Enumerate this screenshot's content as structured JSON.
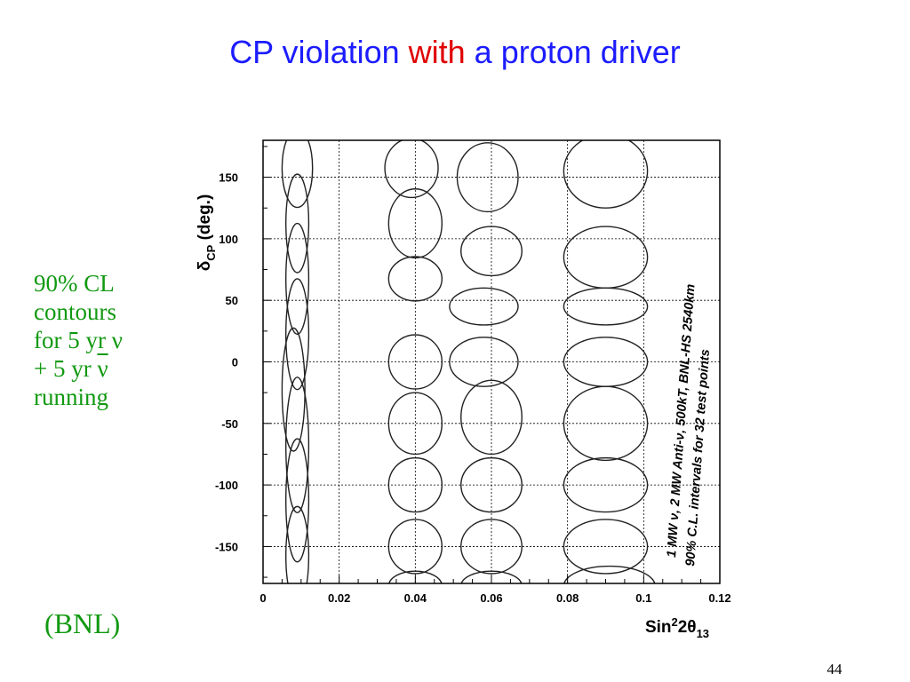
{
  "slide": {
    "title_part1": "CP violation ",
    "title_highlight": "with",
    "title_part2": " a proton driver",
    "note_lines": [
      "90% CL",
      "contours",
      "for 5 yr ν",
      "+ 5 yr ",
      "running"
    ],
    "note_bar_symbol": "ν",
    "source": "(BNL)",
    "page_number": "44",
    "colors": {
      "title": "#1c1cff",
      "highlight": "#e00000",
      "note": "#119911"
    }
  },
  "chart_data": {
    "type": "contour",
    "xlabel": "Sin²2θ₁₃",
    "ylabel": "δCP (deg.)",
    "xlim": [
      0,
      0.12
    ],
    "ylim": [
      -180,
      180
    ],
    "xticks": [
      0,
      0.02,
      0.04,
      0.06,
      0.08,
      0.1,
      0.12
    ],
    "xtick_labels": [
      "0",
      "0.02",
      "0.04",
      "0.06",
      "0.08",
      "0.1",
      "0.12"
    ],
    "yticks": [
      -150,
      -100,
      -50,
      0,
      50,
      100,
      150
    ],
    "ytick_labels": [
      "-150",
      "-100",
      "-50",
      "0",
      "50",
      "100",
      "150"
    ],
    "grid": true,
    "annotation_line1": "1 MW ν, 2 MW Anti-ν,  500kT,  BNL-HS 2540km",
    "annotation_line2": "90% C.L. intervals for 32 test points",
    "test_points_note": "32 test points: sin²2θ13 ∈ {0.01, 0.04, 0.06, 0.09} × δCP ∈ {-157.5 … 157.5}",
    "contours": [
      {
        "x": 0.009,
        "y": 157.5,
        "dx": 0.004,
        "dy": 32
      },
      {
        "x": 0.009,
        "y": 112.5,
        "dx": 0.003,
        "dy": 40
      },
      {
        "x": 0.009,
        "y": 67.5,
        "dx": 0.003,
        "dy": 45
      },
      {
        "x": 0.009,
        "y": 22.5,
        "dx": 0.003,
        "dy": 45
      },
      {
        "x": 0.008,
        "y": -22.5,
        "dx": 0.003,
        "dy": 50
      },
      {
        "x": 0.009,
        "y": -67.5,
        "dx": 0.003,
        "dy": 55
      },
      {
        "x": 0.009,
        "y": -112.5,
        "dx": 0.003,
        "dy": 50
      },
      {
        "x": 0.009,
        "y": -157.5,
        "dx": 0.003,
        "dy": 40
      },
      {
        "x": 0.039,
        "y": 157.5,
        "dx": 0.007,
        "dy": 24
      },
      {
        "x": 0.04,
        "y": 112.5,
        "dx": 0.007,
        "dy": 28
      },
      {
        "x": 0.04,
        "y": 67.5,
        "dx": 0.007,
        "dy": 18
      },
      {
        "x": 0.04,
        "y": 0,
        "dx": 0.007,
        "dy": 22
      },
      {
        "x": 0.04,
        "y": -50,
        "dx": 0.007,
        "dy": 25
      },
      {
        "x": 0.04,
        "y": -100,
        "dx": 0.007,
        "dy": 22
      },
      {
        "x": 0.04,
        "y": -150,
        "dx": 0.007,
        "dy": 22
      },
      {
        "x": 0.059,
        "y": 150,
        "dx": 0.008,
        "dy": 28
      },
      {
        "x": 0.06,
        "y": 90,
        "dx": 0.008,
        "dy": 20
      },
      {
        "x": 0.058,
        "y": 45,
        "dx": 0.009,
        "dy": 15
      },
      {
        "x": 0.058,
        "y": 0,
        "dx": 0.009,
        "dy": 20
      },
      {
        "x": 0.06,
        "y": -45,
        "dx": 0.008,
        "dy": 30
      },
      {
        "x": 0.06,
        "y": -100,
        "dx": 0.008,
        "dy": 22
      },
      {
        "x": 0.06,
        "y": -150,
        "dx": 0.008,
        "dy": 22
      },
      {
        "x": 0.09,
        "y": 155,
        "dx": 0.011,
        "dy": 30
      },
      {
        "x": 0.09,
        "y": 85,
        "dx": 0.011,
        "dy": 25
      },
      {
        "x": 0.09,
        "y": 45,
        "dx": 0.011,
        "dy": 15
      },
      {
        "x": 0.09,
        "y": 0,
        "dx": 0.011,
        "dy": 20
      },
      {
        "x": 0.09,
        "y": -50,
        "dx": 0.011,
        "dy": 30
      },
      {
        "x": 0.09,
        "y": -100,
        "dx": 0.011,
        "dy": 22
      },
      {
        "x": 0.09,
        "y": -150,
        "dx": 0.011,
        "dy": 22
      },
      {
        "x": 0.091,
        "y": -182,
        "dx": 0.012,
        "dy": 16
      },
      {
        "x": 0.04,
        "y": -182,
        "dx": 0.007,
        "dy": 12
      },
      {
        "x": 0.06,
        "y": -182,
        "dx": 0.008,
        "dy": 12
      }
    ]
  }
}
